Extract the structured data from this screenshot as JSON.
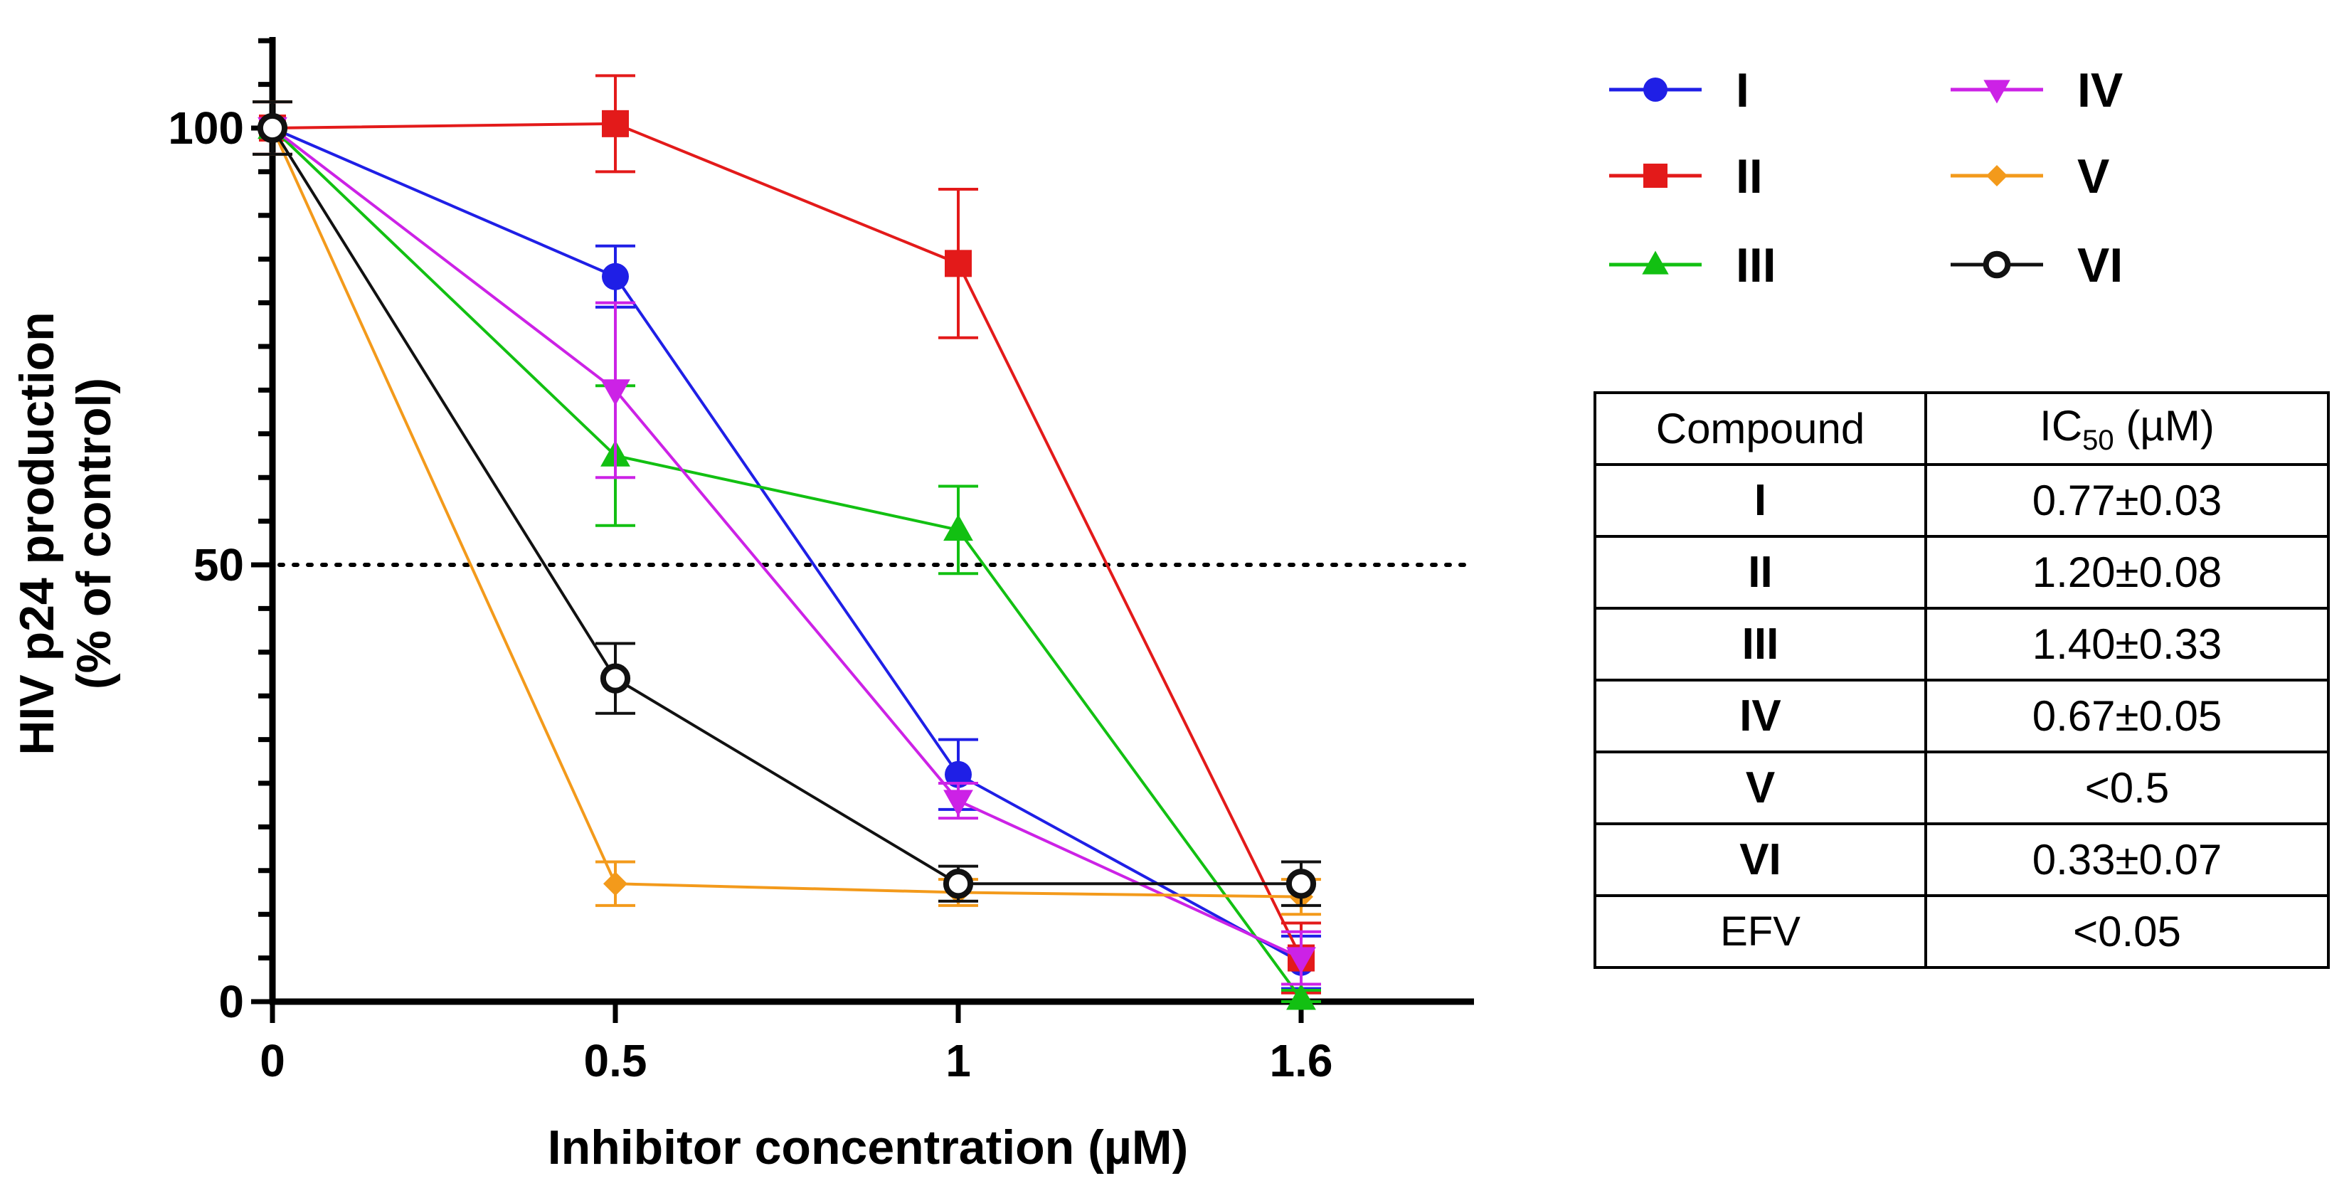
{
  "chart_data": {
    "type": "line",
    "xlabel": "Inhibitor concentration (µM)",
    "ylabel": "HIV p24 production",
    "ylabel_sub": "(% of control)",
    "x_ticks": [
      "0",
      "0.5",
      "1",
      "1.6"
    ],
    "x_positions": [
      0,
      1,
      2,
      3
    ],
    "y_ticks": [
      0,
      50,
      100
    ],
    "ylim": [
      0,
      110
    ],
    "reference_line": {
      "y": 50,
      "style": "dotted"
    },
    "series": [
      {
        "name": "I",
        "color": "#1f1fe6",
        "marker": "circle",
        "values": [
          100,
          83,
          26,
          4.5
        ],
        "errors": [
          3,
          3.5,
          4,
          3
        ]
      },
      {
        "name": "II",
        "color": "#e31a1a",
        "marker": "square",
        "values": [
          100,
          100.5,
          84.5,
          5
        ],
        "errors": [
          3,
          5.5,
          8.5,
          4
        ]
      },
      {
        "name": "III",
        "color": "#12c012",
        "marker": "triangle-up",
        "values": [
          100,
          62.5,
          54,
          0.3
        ],
        "errors": [
          3,
          8,
          5,
          1
        ]
      },
      {
        "name": "IV",
        "color": "#cc22e6",
        "marker": "triangle-down",
        "values": [
          100,
          70,
          23,
          5
        ],
        "errors": [
          3,
          10,
          2,
          3
        ]
      },
      {
        "name": "V",
        "color": "#f39a1b",
        "marker": "diamond",
        "values": [
          100,
          13.5,
          12.5,
          12
        ],
        "errors": [
          3,
          2.5,
          1.5,
          2
        ]
      },
      {
        "name": "VI",
        "color": "#111111",
        "marker": "open-circle",
        "values": [
          100,
          37,
          13.5,
          13.5
        ],
        "errors": [
          3,
          4,
          2,
          2.5
        ]
      }
    ]
  },
  "ic50_table": {
    "header": {
      "compound": "Compound",
      "ic50_prefix": "IC",
      "ic50_sub": "50",
      "ic50_suffix": " (µM)"
    },
    "rows": [
      {
        "compound": "I",
        "value": "0.77±0.03"
      },
      {
        "compound": "II",
        "value": "1.20±0.08"
      },
      {
        "compound": "III",
        "value": "1.40±0.33"
      },
      {
        "compound": "IV",
        "value": "0.67±0.05"
      },
      {
        "compound": "V",
        "value": "<0.5"
      },
      {
        "compound": "VI",
        "value": "0.33±0.07"
      },
      {
        "compound": "EFV",
        "value": "<0.05"
      }
    ]
  }
}
